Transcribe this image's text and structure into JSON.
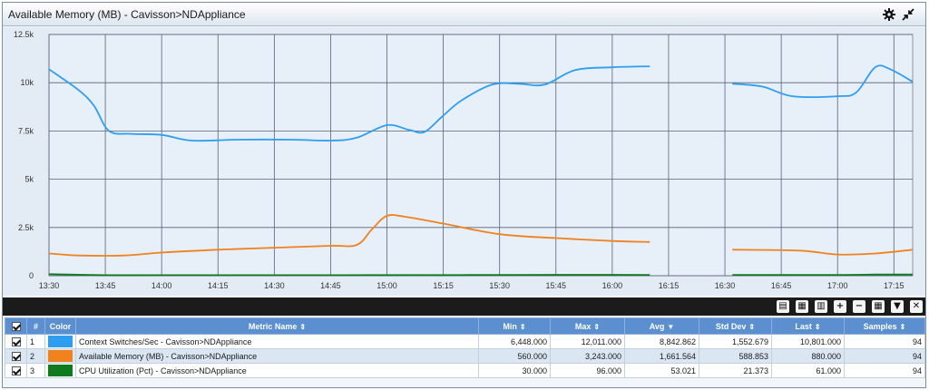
{
  "panel": {
    "title": "Available Memory (MB) - Cavisson>NDAppliance",
    "settings_icon": "gear-icon",
    "collapse_icon": "minimize-arrows-icon"
  },
  "chart_data": {
    "type": "line",
    "title": "Available Memory (MB) - Cavisson>NDAppliance",
    "x_ticks": [
      "13:30",
      "13:45",
      "14:00",
      "14:15",
      "14:30",
      "14:45",
      "15:00",
      "15:15",
      "15:30",
      "15:45",
      "16:00",
      "16:15",
      "16:30",
      "16:45",
      "17:00",
      "17:15"
    ],
    "y_ticks": [
      "0",
      "2.5k",
      "5k",
      "7.5k",
      "10k",
      "12.5k"
    ],
    "ylim": [
      0,
      12500
    ],
    "xlim": [
      "13:30",
      "17:20"
    ],
    "grid": true,
    "series": [
      {
        "name": "Context Switches/Sec - Cavisson>NDAppliance",
        "color": "#2e9ef0",
        "segments": [
          [
            [
              "13:30",
              10700
            ],
            [
              "13:38",
              9600
            ],
            [
              "13:42",
              8800
            ],
            [
              "13:46",
              7500
            ],
            [
              "13:52",
              7350
            ],
            [
              "14:00",
              7300
            ],
            [
              "14:08",
              7000
            ],
            [
              "14:20",
              7050
            ],
            [
              "14:35",
              7050
            ],
            [
              "14:45",
              7000
            ],
            [
              "14:52",
              7150
            ],
            [
              "15:00",
              7800
            ],
            [
              "15:06",
              7550
            ],
            [
              "15:10",
              7450
            ],
            [
              "15:15",
              8300
            ],
            [
              "15:20",
              9100
            ],
            [
              "15:28",
              9900
            ],
            [
              "15:35",
              9950
            ],
            [
              "15:42",
              9900
            ],
            [
              "15:50",
              10650
            ],
            [
              "16:00",
              10800
            ],
            [
              "16:10",
              10850
            ]
          ],
          [
            [
              "16:32",
              9950
            ],
            [
              "16:40",
              9800
            ],
            [
              "16:48",
              9300
            ],
            [
              "17:00",
              9300
            ],
            [
              "17:05",
              9500
            ],
            [
              "17:10",
              10800
            ],
            [
              "17:14",
              10700
            ],
            [
              "17:20",
              10050
            ]
          ]
        ]
      },
      {
        "name": "Available Memory (MB) - Cavisson>NDAppliance",
        "color": "#f0821e",
        "segments": [
          [
            [
              "13:30",
              1150
            ],
            [
              "13:38",
              1050
            ],
            [
              "13:50",
              1050
            ],
            [
              "14:00",
              1200
            ],
            [
              "14:15",
              1350
            ],
            [
              "14:30",
              1450
            ],
            [
              "14:45",
              1550
            ],
            [
              "14:52",
              1600
            ],
            [
              "14:56",
              2400
            ],
            [
              "15:00",
              3100
            ],
            [
              "15:05",
              3050
            ],
            [
              "15:15",
              2700
            ],
            [
              "15:30",
              2150
            ],
            [
              "15:45",
              1950
            ],
            [
              "16:00",
              1800
            ],
            [
              "16:10",
              1750
            ]
          ],
          [
            [
              "16:32",
              1350
            ],
            [
              "16:50",
              1300
            ],
            [
              "17:00",
              1100
            ],
            [
              "17:10",
              1150
            ],
            [
              "17:20",
              1350
            ]
          ]
        ]
      },
      {
        "name": "CPU Utilization (Pct) - Cavisson>NDAppliance",
        "color": "#0f7a1e",
        "segments": [
          [
            [
              "13:30",
              80
            ],
            [
              "13:45",
              30
            ],
            [
              "14:00",
              30
            ],
            [
              "14:15",
              30
            ],
            [
              "14:30",
              30
            ],
            [
              "14:45",
              30
            ],
            [
              "15:00",
              35
            ],
            [
              "15:15",
              35
            ],
            [
              "15:30",
              40
            ],
            [
              "15:45",
              45
            ],
            [
              "16:00",
              45
            ],
            [
              "16:10",
              40
            ]
          ],
          [
            [
              "16:32",
              40
            ],
            [
              "16:45",
              40
            ],
            [
              "17:00",
              40
            ],
            [
              "17:10",
              60
            ],
            [
              "17:20",
              60
            ]
          ]
        ]
      }
    ]
  },
  "toolbar": {
    "buttons": [
      "pdf-export-icon",
      "excel-export-icon",
      "doc-export-icon",
      "plus-icon",
      "minus-icon",
      "grid-icon",
      "filter-icon",
      "close-icon"
    ]
  },
  "table": {
    "headers": {
      "index": "#",
      "color": "Color",
      "metric": "Metric Name",
      "min": "Min",
      "max": "Max",
      "avg": "Avg",
      "stddev": "Std Dev",
      "last": "Last",
      "samples": "Samples"
    },
    "rows": [
      {
        "index": "1",
        "color": "#2e9ef0",
        "metric": "Context Switches/Sec - Cavisson>NDAppliance",
        "min": "6,448.000",
        "max": "12,011.000",
        "avg": "8,842.862",
        "stddev": "1,552.679",
        "last": "10,801.000",
        "samples": "94"
      },
      {
        "index": "2",
        "color": "#f0821e",
        "metric": "Available Memory (MB) - Cavisson>NDAppliance",
        "min": "560.000",
        "max": "3,243.000",
        "avg": "1,661.564",
        "stddev": "588.853",
        "last": "880.000",
        "samples": "94"
      },
      {
        "index": "3",
        "color": "#0f7a1e",
        "metric": "CPU Utilization (Pct) - Cavisson>NDAppliance",
        "min": "30.000",
        "max": "96.000",
        "avg": "53.021",
        "stddev": "21.373",
        "last": "61.000",
        "samples": "94"
      }
    ]
  }
}
